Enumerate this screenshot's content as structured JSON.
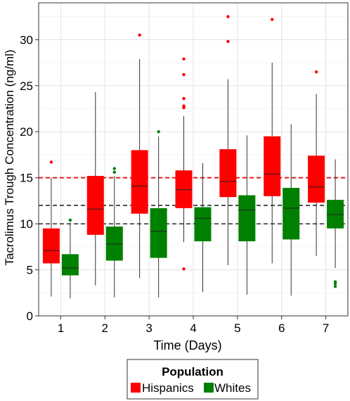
{
  "chart_data": {
    "type": "boxplot",
    "xlabel": "Time (Days)",
    "ylabel": "Tacrolimus Trough Concentration (ng/ml)",
    "categories": [
      "1",
      "2",
      "3",
      "4",
      "5",
      "6",
      "7"
    ],
    "ylim": [
      0,
      34
    ],
    "yticks": [
      0,
      5,
      10,
      15,
      20,
      25,
      30
    ],
    "grid": true,
    "legend": {
      "title": "Population",
      "position": "bottom",
      "entries": [
        "Hispanics",
        "Whites"
      ]
    },
    "reference_lines": [
      {
        "y": 15,
        "color": "#e41a1c",
        "style": "dashed"
      },
      {
        "y": 12,
        "color": "#000000",
        "style": "dashed"
      },
      {
        "y": 10,
        "color": "#000000",
        "style": "dashed"
      }
    ],
    "series": [
      {
        "name": "Hispanics",
        "color": "#ff0000",
        "boxes": [
          {
            "min": 2.1,
            "q1": 5.7,
            "median": 7.1,
            "q3": 9.5,
            "max": 15.0,
            "outliers": [
              16.7
            ]
          },
          {
            "min": 3.3,
            "q1": 8.8,
            "median": 11.6,
            "q3": 15.2,
            "max": 24.3,
            "outliers": []
          },
          {
            "min": 4.1,
            "q1": 11.1,
            "median": 14.1,
            "q3": 18.0,
            "max": 27.9,
            "outliers": [
              30.5
            ]
          },
          {
            "min": 8.0,
            "q1": 11.7,
            "median": 13.7,
            "q3": 15.8,
            "max": 21.7,
            "outliers": [
              5.1,
              22.6,
              22.8,
              23.6,
              26.2,
              27.9
            ]
          },
          {
            "min": 5.5,
            "q1": 12.9,
            "median": 14.6,
            "q3": 18.1,
            "max": 25.7,
            "outliers": [
              29.8,
              32.5
            ]
          },
          {
            "min": 5.7,
            "q1": 13.0,
            "median": 15.4,
            "q3": 19.5,
            "max": 27.5,
            "outliers": [
              32.2
            ]
          },
          {
            "min": 6.5,
            "q1": 12.3,
            "median": 14.0,
            "q3": 17.4,
            "max": 24.1,
            "outliers": [
              26.5
            ]
          }
        ]
      },
      {
        "name": "Whites",
        "color": "#008000",
        "boxes": [
          {
            "min": 1.9,
            "q1": 4.4,
            "median": 5.2,
            "q3": 6.7,
            "max": 10.1,
            "outliers": [
              10.4
            ]
          },
          {
            "min": 2.0,
            "q1": 6.0,
            "median": 7.8,
            "q3": 9.7,
            "max": 15.2,
            "outliers": [
              15.6,
              16.0
            ]
          },
          {
            "min": 2.0,
            "q1": 6.3,
            "median": 9.2,
            "q3": 11.7,
            "max": 19.5,
            "outliers": [
              20.0
            ]
          },
          {
            "min": 2.6,
            "q1": 8.1,
            "median": 10.6,
            "q3": 11.8,
            "max": 16.6,
            "outliers": []
          },
          {
            "min": 2.3,
            "q1": 8.1,
            "median": 11.5,
            "q3": 13.1,
            "max": 19.6,
            "outliers": []
          },
          {
            "min": 2.2,
            "q1": 8.3,
            "median": 11.7,
            "q3": 13.9,
            "max": 20.8,
            "outliers": []
          },
          {
            "min": 5.2,
            "q1": 9.5,
            "median": 11.0,
            "q3": 12.6,
            "max": 17.0,
            "outliers": [
              3.2,
              3.5,
              3.7
            ]
          }
        ]
      }
    ]
  }
}
